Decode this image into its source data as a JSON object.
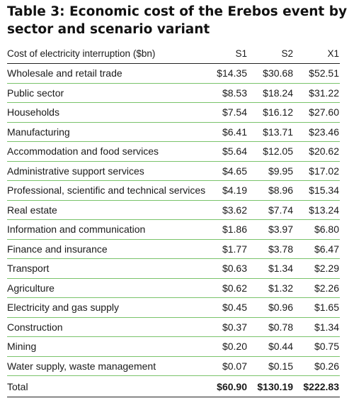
{
  "title": "Table 3: Economic cost of the Erebos event by sector and scenario variant",
  "header": {
    "label": "Cost of electricity interruption ($bn)",
    "s1": "S1",
    "s2": "S2",
    "x1": "X1"
  },
  "rows": [
    {
      "sector": "Wholesale and retail trade",
      "s1": "$14.35",
      "s2": "$30.68",
      "x1": "$52.51"
    },
    {
      "sector": "Public sector",
      "s1": "$8.53",
      "s2": "$18.24",
      "x1": "$31.22"
    },
    {
      "sector": "Households",
      "s1": "$7.54",
      "s2": "$16.12",
      "x1": "$27.60"
    },
    {
      "sector": "Manufacturing",
      "s1": "$6.41",
      "s2": "$13.71",
      "x1": "$23.46"
    },
    {
      "sector": "Accommodation and food services",
      "s1": "$5.64",
      "s2": "$12.05",
      "x1": "$20.62"
    },
    {
      "sector": "Administrative support services",
      "s1": "$4.65",
      "s2": "$9.95",
      "x1": "$17.02"
    },
    {
      "sector": "Professional, scientific and technical services",
      "s1": "$4.19",
      "s2": "$8.96",
      "x1": "$15.34"
    },
    {
      "sector": "Real estate",
      "s1": "$3.62",
      "s2": "$7.74",
      "x1": "$13.24"
    },
    {
      "sector": "Information and communication",
      "s1": "$1.86",
      "s2": "$3.97",
      "x1": "$6.80"
    },
    {
      "sector": "Finance and insurance",
      "s1": "$1.77",
      "s2": "$3.78",
      "x1": "$6.47"
    },
    {
      "sector": "Transport",
      "s1": "$0.63",
      "s2": "$1.34",
      "x1": "$2.29"
    },
    {
      "sector": "Agriculture",
      "s1": "$0.62",
      "s2": "$1.32",
      "x1": "$2.26"
    },
    {
      "sector": "Electricity and gas supply",
      "s1": "$0.45",
      "s2": "$0.96",
      "x1": "$1.65"
    },
    {
      "sector": "Construction",
      "s1": "$0.37",
      "s2": "$0.78",
      "x1": "$1.34"
    },
    {
      "sector": "Mining",
      "s1": "$0.20",
      "s2": "$0.44",
      "x1": "$0.75"
    },
    {
      "sector": "Water supply, waste management",
      "s1": "$0.07",
      "s2": "$0.15",
      "x1": "$0.26"
    }
  ],
  "total": {
    "label": "Total",
    "s1": "$60.90",
    "s2": "$130.19",
    "x1": "$222.83"
  },
  "colors": {
    "row_divider": "#7ac36b",
    "rule": "#222222",
    "text": "#1a1a1a"
  }
}
